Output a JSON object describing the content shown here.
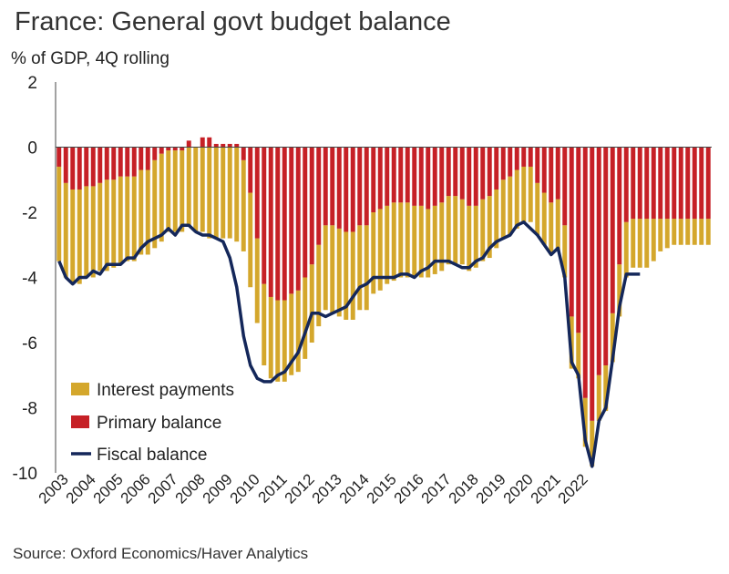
{
  "chart_data": {
    "type": "bar",
    "title": "France: General govt budget balance",
    "subtitle": "% of GDP, 4Q rolling",
    "source": "Source: Oxford Economics/Haver Analytics",
    "ylim": [
      -10,
      2
    ],
    "yticks": [
      2,
      0,
      -2,
      -4,
      -6,
      -8,
      -10
    ],
    "year_labels": [
      "2003",
      "2004",
      "2005",
      "2006",
      "2007",
      "2008",
      "2009",
      "2010",
      "2011",
      "2012",
      "2013",
      "2014",
      "2015",
      "2016",
      "2017",
      "2018",
      "2019",
      "2020",
      "2021",
      "2022"
    ],
    "legend_position": "bottom-left",
    "stacked": true,
    "series": [
      {
        "name": "Interest payments",
        "color": "#d4a72c",
        "type": "bar",
        "values": [
          -2.9,
          -2.9,
          -2.9,
          -2.9,
          -2.8,
          -2.8,
          -2.7,
          -2.8,
          -2.7,
          -2.7,
          -2.6,
          -2.6,
          -2.6,
          -2.6,
          -2.7,
          -2.7,
          -2.5,
          -2.5,
          -2.5,
          -2.4,
          -2.6,
          -2.6,
          -2.8,
          -2.8,
          -2.8,
          -2.8,
          -2.9,
          -2.8,
          -2.9,
          -2.6,
          -2.5,
          -2.5,
          -2.5,
          -2.5,
          -2.5,
          -2.5,
          -2.5,
          -2.4,
          -2.5,
          -2.6,
          -2.7,
          -2.7,
          -2.7,
          -2.7,
          -2.6,
          -2.6,
          -2.5,
          -2.5,
          -2.4,
          -2.4,
          -2.3,
          -2.3,
          -2.2,
          -2.2,
          -2.1,
          -2.1,
          -2.1,
          -2.1,
          -2.1,
          -2.0,
          -2.0,
          -1.9,
          -1.9,
          -1.9,
          -1.8,
          -1.8,
          -1.8,
          -1.8,
          -1.7,
          -1.7,
          -1.6,
          -1.6,
          -1.6,
          -1.6,
          -1.6,
          -1.6,
          -1.4,
          -1.5,
          -1.4,
          -1.4,
          -1.4,
          -1.5,
          -1.6,
          -1.7,
          -1.5,
          -1.5,
          -1.5,
          -1.3,
          -1.0,
          -0.9,
          -0.8,
          -0.8,
          -0.8,
          -0.8,
          -0.8,
          -0.8
        ]
      },
      {
        "name": "Primary balance",
        "color": "#c62026",
        "type": "bar",
        "values": [
          -0.6,
          -1.1,
          -1.3,
          -1.3,
          -1.2,
          -1.2,
          -1.1,
          -1.0,
          -1.0,
          -0.9,
          -0.9,
          -0.9,
          -0.7,
          -0.7,
          -0.4,
          -0.2,
          -0.1,
          -0.1,
          -0.1,
          0.2,
          0.0,
          0.3,
          0.3,
          0.1,
          0.1,
          0.1,
          0.1,
          -0.4,
          -1.4,
          -2.8,
          -4.2,
          -4.6,
          -4.7,
          -4.7,
          -4.5,
          -4.4,
          -4.0,
          -3.6,
          -3.0,
          -2.4,
          -2.4,
          -2.5,
          -2.6,
          -2.6,
          -2.4,
          -2.4,
          -2.0,
          -1.9,
          -1.8,
          -1.7,
          -1.7,
          -1.7,
          -1.8,
          -1.8,
          -1.9,
          -1.8,
          -1.7,
          -1.5,
          -1.5,
          -1.6,
          -1.8,
          -1.8,
          -1.6,
          -1.5,
          -1.3,
          -1.0,
          -0.9,
          -0.7,
          -0.6,
          -0.6,
          -1.1,
          -1.4,
          -1.7,
          -1.6,
          -2.4,
          -5.2,
          -5.7,
          -7.7,
          -8.4,
          -7.0,
          -6.7,
          -5.1,
          -3.6,
          -2.3,
          -2.2,
          -2.2,
          -2.2,
          -2.2,
          -2.2,
          -2.2,
          -2.2,
          -2.2,
          -2.2,
          -2.2,
          -2.2,
          -2.2
        ]
      },
      {
        "name": "Fiscal balance",
        "color": "#14275a",
        "type": "line",
        "values": [
          -3.5,
          -4.0,
          -4.2,
          -4.0,
          -4.0,
          -3.8,
          -3.9,
          -3.6,
          -3.6,
          -3.6,
          -3.4,
          -3.4,
          -3.1,
          -2.9,
          -2.8,
          -2.7,
          -2.5,
          -2.7,
          -2.4,
          -2.4,
          -2.6,
          -2.7,
          -2.7,
          -2.8,
          -2.9,
          -3.4,
          -4.3,
          -5.8,
          -6.7,
          -7.1,
          -7.2,
          -7.2,
          -7.0,
          -6.9,
          -6.6,
          -6.3,
          -5.7,
          -5.1,
          -5.1,
          -5.2,
          -5.1,
          -5.0,
          -4.9,
          -4.6,
          -4.3,
          -4.2,
          -4.0,
          -4.0,
          -4.0,
          -4.0,
          -3.9,
          -3.9,
          -4.0,
          -3.8,
          -3.7,
          -3.5,
          -3.5,
          -3.5,
          -3.6,
          -3.7,
          -3.7,
          -3.5,
          -3.4,
          -3.1,
          -2.9,
          -2.8,
          -2.7,
          -2.4,
          -2.3,
          -2.5,
          -2.7,
          -3.0,
          -3.3,
          -3.1,
          -4.0,
          -6.6,
          -7.0,
          -9.0,
          -9.8,
          -8.4,
          -8.0,
          -6.5,
          -4.9,
          -3.9,
          -3.9,
          -3.9
        ]
      }
    ]
  }
}
